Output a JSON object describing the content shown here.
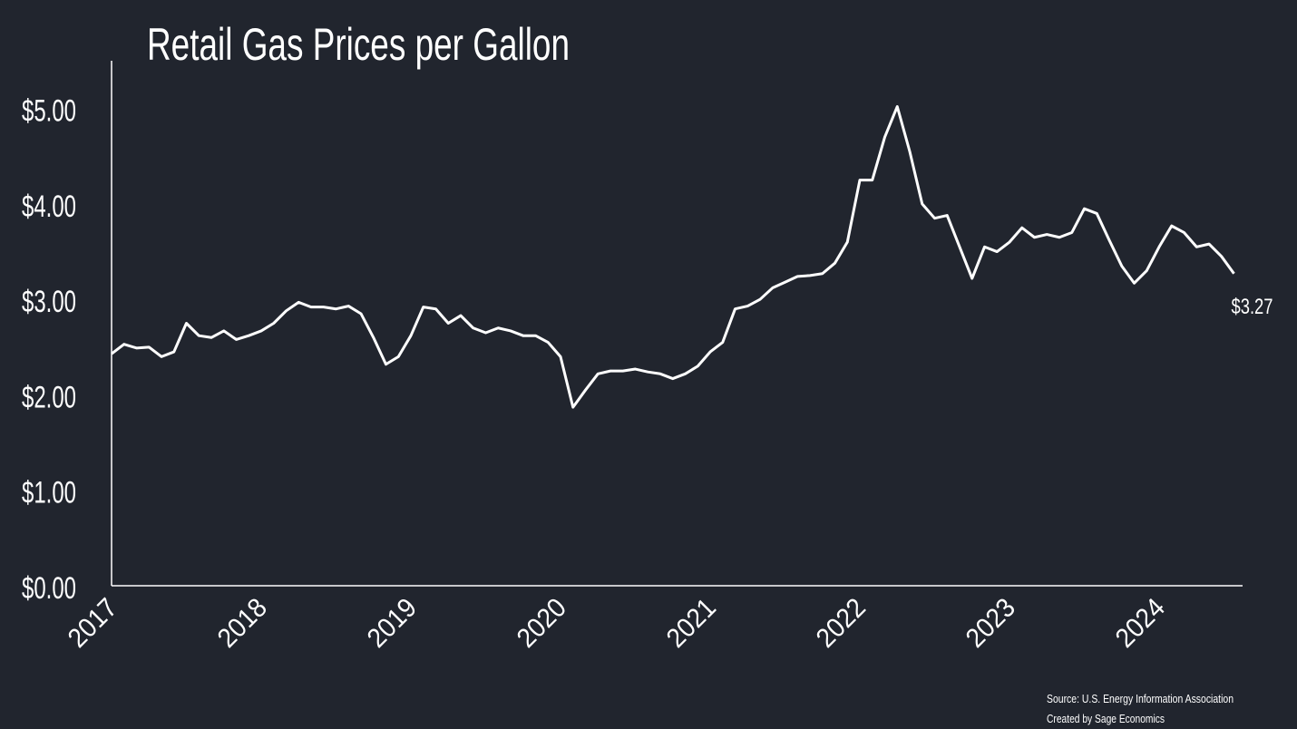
{
  "chart_data": {
    "type": "line",
    "title": "Retail Gas Prices per Gallon",
    "categories": [
      "2017",
      null,
      null,
      null,
      null,
      null,
      null,
      null,
      null,
      null,
      null,
      null,
      "2018",
      null,
      null,
      null,
      null,
      null,
      null,
      null,
      null,
      null,
      null,
      null,
      "2019",
      null,
      null,
      null,
      null,
      null,
      null,
      null,
      null,
      null,
      null,
      null,
      "2020",
      null,
      null,
      null,
      null,
      null,
      null,
      null,
      null,
      null,
      null,
      null,
      "2021",
      null,
      null,
      null,
      null,
      null,
      null,
      null,
      null,
      null,
      null,
      null,
      "2022",
      null,
      null,
      null,
      null,
      null,
      null,
      null,
      null,
      null,
      null,
      null,
      "2023",
      null,
      null,
      null,
      null,
      null,
      null,
      null,
      null,
      null,
      null,
      null,
      "2024",
      null,
      null,
      null,
      null,
      null,
      null
    ],
    "series": [
      {
        "name": "Retail gas price",
        "color": "#ffffff",
        "values": [
          2.43,
          2.53,
          2.49,
          2.5,
          2.4,
          2.45,
          2.75,
          2.62,
          2.6,
          2.67,
          2.58,
          2.62,
          2.67,
          2.75,
          2.88,
          2.97,
          2.92,
          2.92,
          2.9,
          2.93,
          2.85,
          2.6,
          2.32,
          2.4,
          2.62,
          2.92,
          2.9,
          2.75,
          2.83,
          2.7,
          2.65,
          2.7,
          2.67,
          2.62,
          2.62,
          2.55,
          2.4,
          1.87,
          2.05,
          2.22,
          2.25,
          2.25,
          2.27,
          2.24,
          2.22,
          2.17,
          2.22,
          2.3,
          2.45,
          2.55,
          2.9,
          2.93,
          3.0,
          3.12,
          3.18,
          3.24,
          3.25,
          3.27,
          3.38,
          3.6,
          4.25,
          4.25,
          4.7,
          5.02,
          4.55,
          4.0,
          3.85,
          3.88,
          3.55,
          3.22,
          3.55,
          3.5,
          3.6,
          3.75,
          3.65,
          3.68,
          3.65,
          3.7,
          3.95,
          3.9,
          3.62,
          3.35,
          3.17,
          3.3,
          3.55,
          3.77,
          3.7,
          3.55,
          3.58,
          3.45,
          3.27
        ],
        "value_labels": [
          null,
          null,
          null,
          null,
          null,
          null,
          null,
          null,
          null,
          null,
          null,
          null,
          null,
          null,
          null,
          null,
          null,
          null,
          null,
          null,
          null,
          null,
          null,
          null,
          null,
          null,
          null,
          null,
          null,
          null,
          null,
          null,
          null,
          null,
          null,
          null,
          null,
          null,
          null,
          null,
          null,
          null,
          null,
          null,
          null,
          null,
          null,
          null,
          null,
          null,
          null,
          null,
          null,
          null,
          null,
          null,
          null,
          null,
          null,
          null,
          null,
          null,
          null,
          null,
          null,
          null,
          null,
          null,
          null,
          null,
          null,
          null,
          null,
          null,
          null,
          null,
          null,
          null,
          null,
          null,
          null,
          null,
          null,
          null,
          null,
          null,
          null,
          null,
          null,
          null,
          "$3.27"
        ]
      }
    ],
    "ylim": [
      0,
      5.5
    ],
    "yticks": [
      {
        "value": 0,
        "label": "$0.00"
      },
      {
        "value": 1,
        "label": "$1.00"
      },
      {
        "value": 2,
        "label": "$2.00"
      },
      {
        "value": 3,
        "label": "$3.00"
      },
      {
        "value": 4,
        "label": "$4.00"
      },
      {
        "value": 5,
        "label": "$5.00"
      }
    ],
    "grid": false,
    "source": "Source: U.S. Energy Information Association",
    "credit": "Created by Sage Economics"
  }
}
